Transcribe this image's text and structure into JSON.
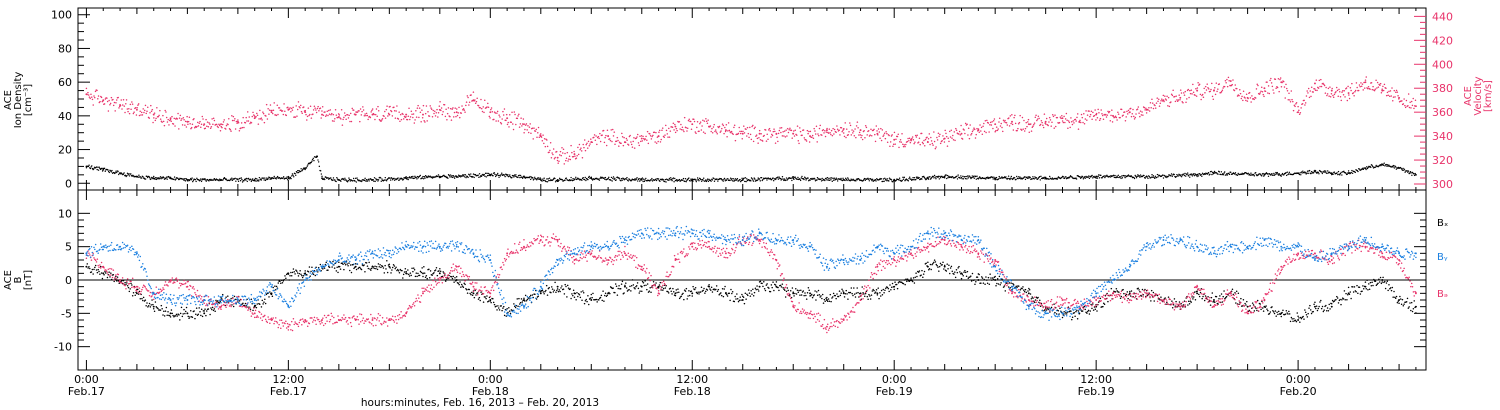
{
  "colors": {
    "black": "#000000",
    "pink": "#e8336a",
    "blue": "#1a7fe0"
  },
  "footer": {
    "xlabel": "hours:minutes, Feb. 16, 2013 – Feb. 20, 2013"
  },
  "chart_data": [
    {
      "type": "scatter",
      "panel": "top",
      "ylabel_left": [
        "ACE",
        "Ion Density",
        "[cm⁻³]"
      ],
      "ylabel_right": [
        "ACE",
        "Velocity",
        "[km/s]"
      ],
      "yticks_left": [
        "0",
        "20",
        "40",
        "60",
        "80",
        "100"
      ],
      "yticks_right": [
        "300",
        "320",
        "340",
        "360",
        "380",
        "400",
        "420",
        "440"
      ],
      "ylim_left": [
        -4,
        104
      ],
      "ylim_right": [
        295,
        447
      ],
      "x_time_hours": [
        -0.5,
        79.6
      ],
      "series": [
        {
          "name": "ion density",
          "axis": "left",
          "color": "#000000",
          "x": [
            0,
            1,
            2,
            3,
            4,
            5,
            6,
            8,
            10,
            11,
            12,
            13,
            13.7,
            14,
            15,
            17,
            19,
            21,
            22,
            24,
            26,
            27,
            28,
            30,
            33,
            36,
            39,
            42,
            45,
            48,
            50,
            51,
            54,
            57,
            60,
            63,
            66,
            67,
            70,
            72,
            73,
            74,
            75,
            76,
            77,
            78,
            79
          ],
          "y": [
            10,
            8,
            6,
            4,
            3,
            3,
            2,
            2,
            2,
            3,
            3,
            9,
            16,
            3,
            2,
            2,
            3,
            4,
            4,
            5,
            4,
            2,
            2,
            3,
            2,
            2,
            2,
            3,
            2,
            2,
            3,
            4,
            3,
            3,
            4,
            4,
            5,
            6,
            5,
            6,
            7,
            6,
            6,
            9,
            11,
            9,
            5
          ]
        },
        {
          "name": "velocity",
          "axis": "right",
          "color": "#e8336a",
          "x": [
            0,
            1,
            2,
            3,
            4,
            5,
            6,
            7,
            8,
            9,
            10,
            11,
            12,
            13,
            14,
            15,
            16,
            17,
            18,
            19,
            20,
            21,
            22,
            23,
            24,
            25,
            26,
            27,
            28,
            29,
            30,
            31,
            32,
            33,
            34,
            35,
            36,
            37,
            38,
            39,
            40,
            41,
            42,
            43,
            44,
            45,
            46,
            47,
            48,
            49,
            50,
            51,
            52,
            53,
            54,
            55,
            56,
            57,
            58,
            59,
            60,
            61,
            62,
            63,
            64,
            65,
            66,
            67,
            68,
            69,
            70,
            71,
            72,
            73,
            74,
            75,
            76,
            77,
            78,
            79
          ],
          "y": [
            375,
            370,
            366,
            362,
            358,
            355,
            352,
            350,
            350,
            352,
            355,
            360,
            362,
            360,
            358,
            356,
            358,
            358,
            358,
            358,
            358,
            362,
            360,
            370,
            360,
            355,
            350,
            340,
            322,
            325,
            335,
            340,
            335,
            338,
            340,
            348,
            350,
            348,
            345,
            342,
            342,
            342,
            342,
            340,
            345,
            346,
            345,
            342,
            337,
            337,
            335,
            338,
            342,
            345,
            350,
            352,
            350,
            352,
            355,
            352,
            358,
            357,
            360,
            362,
            370,
            372,
            378,
            378,
            386,
            372,
            380,
            385,
            360,
            384,
            378,
            376,
            385,
            378,
            372,
            365
          ]
        }
      ]
    },
    {
      "type": "scatter",
      "panel": "bottom",
      "ylabel_left": [
        "ACE",
        "B",
        "[nT]"
      ],
      "yticks_left": [
        "-10",
        "-5",
        "0",
        "5",
        "10"
      ],
      "ylim": [
        -13.5,
        13.5
      ],
      "zero_line": true,
      "x_time_hours": [
        -0.5,
        79.6
      ],
      "legend": [
        "Bₓ",
        "Bᵧ",
        "Bₔ"
      ],
      "series": [
        {
          "name": "Bx",
          "color": "#000000",
          "x": [
            0,
            1,
            2,
            3,
            4,
            5,
            6,
            7,
            8,
            9,
            10,
            11,
            12,
            13,
            14,
            15,
            16,
            17,
            18,
            19,
            20,
            21,
            22,
            23,
            24,
            25,
            26,
            27,
            28,
            29,
            30,
            31,
            32,
            33,
            34,
            35,
            36,
            37,
            38,
            39,
            40,
            41,
            42,
            43,
            44,
            45,
            46,
            47,
            48,
            49,
            50,
            51,
            52,
            53,
            54,
            55,
            56,
            57,
            58,
            59,
            60,
            61,
            62,
            63,
            64,
            65,
            66,
            67,
            68,
            69,
            70,
            71,
            72,
            73,
            74,
            75,
            76,
            77,
            78,
            79
          ],
          "y": [
            2,
            1,
            0,
            -2,
            -4,
            -5,
            -5,
            -5,
            -3,
            -3,
            -4,
            -2,
            1,
            1,
            2,
            2,
            2,
            2,
            2,
            1,
            1,
            1,
            0,
            -2,
            -3,
            -5,
            -3,
            -2,
            -1,
            -2,
            -3,
            -2,
            -1,
            -1,
            -1,
            -2,
            -2,
            -1,
            -2,
            -3,
            -1,
            -1,
            -2,
            -2,
            -3,
            -2,
            -2,
            -2,
            -1,
            0,
            2,
            2,
            1,
            0,
            0,
            -1,
            -2,
            -4,
            -5,
            -5,
            -4,
            -2,
            -2,
            -2,
            -3,
            -4,
            -2,
            -3,
            -2,
            -4,
            -4,
            -5,
            -6,
            -4,
            -4,
            -2,
            -1,
            0,
            -3,
            -4
          ]
        },
        {
          "name": "By",
          "color": "#1a7fe0",
          "x": [
            0,
            1,
            2,
            3,
            4,
            5,
            6,
            7,
            8,
            9,
            10,
            11,
            12,
            13,
            14,
            15,
            16,
            17,
            18,
            19,
            20,
            21,
            22,
            23,
            24,
            25,
            26,
            27,
            28,
            29,
            30,
            31,
            32,
            33,
            34,
            35,
            36,
            37,
            38,
            39,
            40,
            41,
            42,
            43,
            44,
            45,
            46,
            47,
            48,
            49,
            50,
            51,
            52,
            53,
            54,
            55,
            56,
            57,
            58,
            59,
            60,
            61,
            62,
            63,
            64,
            65,
            66,
            67,
            68,
            69,
            70,
            71,
            72,
            73,
            74,
            75,
            76,
            77,
            78,
            79
          ],
          "y": [
            4,
            5,
            5,
            4,
            -2,
            -3,
            -3,
            -3,
            -3,
            -3,
            -3,
            -1,
            -4,
            0,
            2,
            3,
            3,
            4,
            4,
            5,
            5,
            5,
            5,
            4,
            3,
            -5,
            -4,
            -1,
            3,
            4,
            5,
            5,
            6,
            7,
            7,
            7,
            7,
            7,
            6,
            6,
            7,
            6,
            6,
            5,
            2,
            3,
            3,
            5,
            4,
            5,
            7,
            7,
            6,
            6,
            2,
            -1,
            -4,
            -5,
            -5,
            -4,
            -2,
            0,
            2,
            5,
            6,
            6,
            5,
            4,
            5,
            5,
            6,
            5,
            5,
            3,
            4,
            5,
            6,
            5,
            4,
            4
          ]
        },
        {
          "name": "Bz",
          "color": "#e8336a",
          "x": [
            0,
            1,
            2,
            3,
            4,
            5,
            6,
            7,
            8,
            9,
            10,
            11,
            12,
            13,
            14,
            15,
            16,
            17,
            18,
            19,
            20,
            21,
            22,
            23,
            24,
            25,
            26,
            27,
            28,
            29,
            30,
            31,
            32,
            33,
            34,
            35,
            36,
            37,
            38,
            39,
            40,
            41,
            42,
            43,
            44,
            45,
            46,
            47,
            48,
            49,
            50,
            51,
            52,
            53,
            54,
            55,
            56,
            57,
            58,
            59,
            60,
            61,
            62,
            63,
            64,
            65,
            66,
            67,
            68,
            69,
            70,
            71,
            72,
            73,
            74,
            75,
            76,
            77,
            78,
            79
          ],
          "y": [
            4,
            2,
            0,
            -1,
            -2,
            0,
            -1,
            -3,
            -4,
            -3,
            -5,
            -6,
            -7,
            -6,
            -6,
            -6,
            -6,
            -6,
            -6,
            -5,
            -2,
            0,
            2,
            -1,
            -2,
            4,
            5,
            6,
            6,
            3,
            4,
            3,
            4,
            2,
            -2,
            3,
            5,
            5,
            4,
            6,
            6,
            3,
            -4,
            -5,
            -7,
            -6,
            -3,
            2,
            3,
            4,
            5,
            6,
            5,
            4,
            3,
            -2,
            -3,
            -4,
            -3,
            -4,
            -3,
            -2,
            -3,
            -2,
            -3,
            -4,
            -1,
            -4,
            -2,
            -5,
            -3,
            2,
            4,
            4,
            3,
            5,
            5,
            4,
            3,
            -2
          ]
        }
      ]
    },
    {
      "type": "axis",
      "panel": "x-axis",
      "tick_labels": [
        {
          "hour": 0,
          "time": "0:00",
          "date": "Feb.17"
        },
        {
          "hour": 12,
          "time": "12:00",
          "date": "Feb.17"
        },
        {
          "hour": 24,
          "time": "0:00",
          "date": "Feb.18"
        },
        {
          "hour": 36,
          "time": "12:00",
          "date": "Feb.18"
        },
        {
          "hour": 48,
          "time": "0:00",
          "date": "Feb.19"
        },
        {
          "hour": 60,
          "time": "12:00",
          "date": "Feb.19"
        },
        {
          "hour": 72,
          "time": "0:00",
          "date": "Feb.20"
        }
      ]
    }
  ]
}
